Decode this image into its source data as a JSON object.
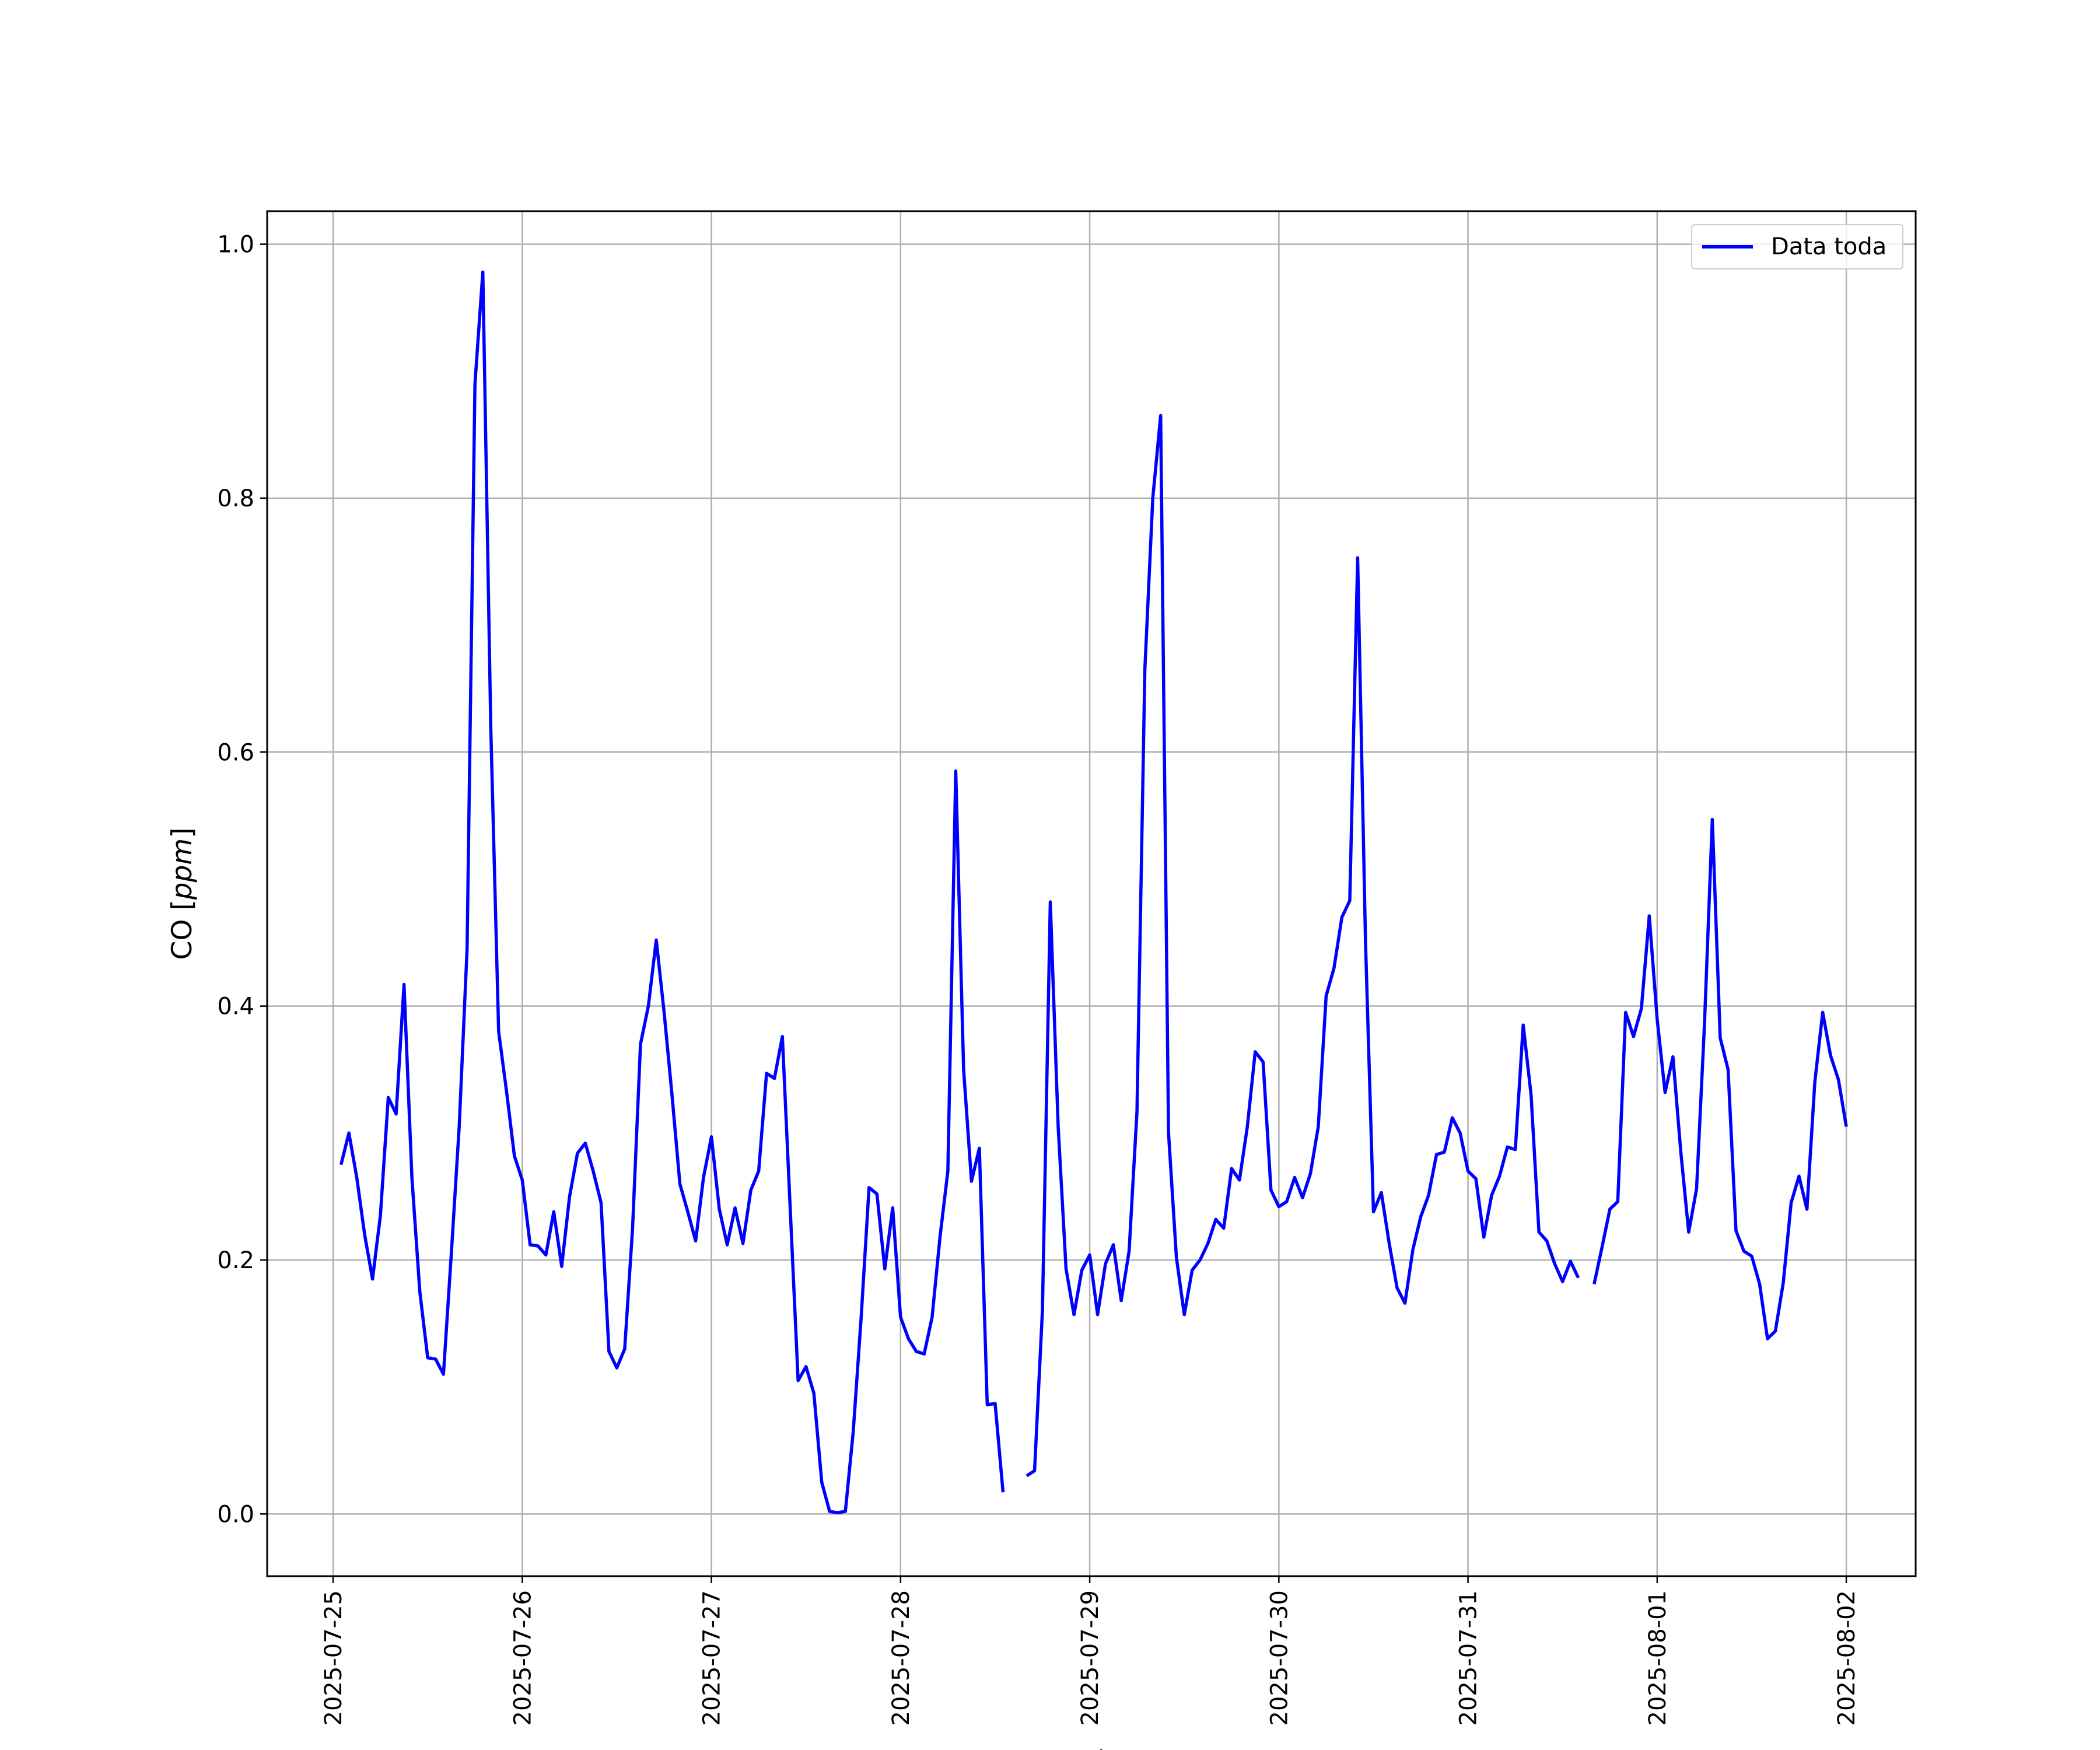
{
  "chart_data": {
    "type": "line",
    "title": "",
    "xlabel": "Fecha",
    "ylabel": "CO",
    "ylabel_unit": "ppm",
    "ylim": [
      -0.049,
      1.026
    ],
    "xlim": [
      "2025-07-24T15:38",
      "2025-08-02T08:48"
    ],
    "x_ticks": [
      "2025-07-25",
      "2025-07-26",
      "2025-07-27",
      "2025-07-28",
      "2025-07-29",
      "2025-07-30",
      "2025-07-31",
      "2025-08-01",
      "2025-08-02"
    ],
    "y_ticks": [
      "0.0",
      "0.2",
      "0.4",
      "0.6",
      "0.8",
      "1.0"
    ],
    "grid": true,
    "legend_position": "top-right",
    "series": [
      {
        "name": "Data toda",
        "color": "#0000ff",
        "points": [
          [
            "2025-07-25T01:00",
            0.275
          ],
          [
            "2025-07-25T02:00",
            0.3
          ],
          [
            "2025-07-25T03:00",
            0.265
          ],
          [
            "2025-07-25T04:00",
            0.22
          ],
          [
            "2025-07-25T05:00",
            0.185
          ],
          [
            "2025-07-25T06:00",
            0.235
          ],
          [
            "2025-07-25T07:00",
            0.328
          ],
          [
            "2025-07-25T08:00",
            0.315
          ],
          [
            "2025-07-25T09:00",
            0.417
          ],
          [
            "2025-07-25T10:00",
            0.265
          ],
          [
            "2025-07-25T11:00",
            0.175
          ],
          [
            "2025-07-25T12:00",
            0.123
          ],
          [
            "2025-07-25T13:00",
            0.122
          ],
          [
            "2025-07-25T14:00",
            0.11
          ],
          [
            "2025-07-25T15:00",
            0.205
          ],
          [
            "2025-07-25T16:00",
            0.305
          ],
          [
            "2025-07-25T17:00",
            0.445
          ],
          [
            "2025-07-25T18:00",
            0.89
          ],
          [
            "2025-07-25T19:00",
            0.978
          ],
          [
            "2025-07-25T20:00",
            0.62
          ],
          [
            "2025-07-25T21:00",
            0.38
          ],
          [
            "2025-07-25T22:00",
            0.333
          ],
          [
            "2025-07-25T23:00",
            0.282
          ],
          [
            "2025-07-26T00:00",
            0.263
          ],
          [
            "2025-07-26T01:00",
            0.212
          ],
          [
            "2025-07-26T02:00",
            0.211
          ],
          [
            "2025-07-26T03:00",
            0.204
          ],
          [
            "2025-07-26T04:00",
            0.238
          ],
          [
            "2025-07-26T05:00",
            0.195
          ],
          [
            "2025-07-26T06:00",
            0.25
          ],
          [
            "2025-07-26T07:00",
            0.284
          ],
          [
            "2025-07-26T08:00",
            0.292
          ],
          [
            "2025-07-26T09:00",
            0.27
          ],
          [
            "2025-07-26T10:00",
            0.245
          ],
          [
            "2025-07-26T11:00",
            0.128
          ],
          [
            "2025-07-26T12:00",
            0.115
          ],
          [
            "2025-07-26T13:00",
            0.13
          ],
          [
            "2025-07-26T14:00",
            0.225
          ],
          [
            "2025-07-26T15:00",
            0.37
          ],
          [
            "2025-07-26T16:00",
            0.4
          ],
          [
            "2025-07-26T17:00",
            0.452
          ],
          [
            "2025-07-26T18:00",
            0.395
          ],
          [
            "2025-07-26T19:00",
            0.33
          ],
          [
            "2025-07-26T20:00",
            0.26
          ],
          [
            "2025-07-26T21:00",
            0.238
          ],
          [
            "2025-07-26T22:00",
            0.215
          ],
          [
            "2025-07-26T23:00",
            0.265
          ],
          [
            "2025-07-27T00:00",
            0.297
          ],
          [
            "2025-07-27T01:00",
            0.24
          ],
          [
            "2025-07-27T02:00",
            0.212
          ],
          [
            "2025-07-27T03:00",
            0.241
          ],
          [
            "2025-07-27T04:00",
            0.213
          ],
          [
            "2025-07-27T05:00",
            0.255
          ],
          [
            "2025-07-27T06:00",
            0.27
          ],
          [
            "2025-07-27T07:00",
            0.347
          ],
          [
            "2025-07-27T08:00",
            0.343
          ],
          [
            "2025-07-27T09:00",
            0.376
          ],
          [
            "2025-07-27T10:00",
            0.24
          ],
          [
            "2025-07-27T11:00",
            0.105
          ],
          [
            "2025-07-27T12:00",
            0.116
          ],
          [
            "2025-07-27T13:00",
            0.095
          ],
          [
            "2025-07-27T14:00",
            0.025
          ],
          [
            "2025-07-27T15:00",
            0.002
          ],
          [
            "2025-07-27T16:00",
            0.001
          ],
          [
            "2025-07-27T17:00",
            0.002
          ],
          [
            "2025-07-27T18:00",
            0.065
          ],
          [
            "2025-07-27T19:00",
            0.155
          ],
          [
            "2025-07-27T20:00",
            0.257
          ],
          [
            "2025-07-27T21:00",
            0.252
          ],
          [
            "2025-07-27T22:00",
            0.193
          ],
          [
            "2025-07-27T23:00",
            0.241
          ],
          [
            "2025-07-28T00:00",
            0.155
          ],
          [
            "2025-07-28T01:00",
            0.138
          ],
          [
            "2025-07-28T02:00",
            0.128
          ],
          [
            "2025-07-28T03:00",
            0.126
          ],
          [
            "2025-07-28T04:00",
            0.155
          ],
          [
            "2025-07-28T05:00",
            0.218
          ],
          [
            "2025-07-28T06:00",
            0.27
          ],
          [
            "2025-07-28T07:00",
            0.585
          ],
          [
            "2025-07-28T08:00",
            0.35
          ],
          [
            "2025-07-28T09:00",
            0.262
          ],
          [
            "2025-07-28T10:00",
            0.288
          ],
          [
            "2025-07-28T11:00",
            0.086
          ],
          [
            "2025-07-28T12:00",
            0.087
          ],
          [
            "2025-07-28T13:00",
            0.017
          ],
          [
            "2025-07-28T14:00",
            null
          ],
          [
            "2025-07-28T15:00",
            null
          ],
          [
            "2025-07-28T16:00",
            0.03
          ],
          [
            "2025-07-28T17:00",
            0.034
          ],
          [
            "2025-07-28T18:00",
            0.16
          ],
          [
            "2025-07-28T19:00",
            0.482
          ],
          [
            "2025-07-28T20:00",
            0.305
          ],
          [
            "2025-07-28T21:00",
            0.193
          ],
          [
            "2025-07-28T22:00",
            0.157
          ],
          [
            "2025-07-28T23:00",
            0.192
          ],
          [
            "2025-07-29T00:00",
            0.204
          ],
          [
            "2025-07-29T01:00",
            0.157
          ],
          [
            "2025-07-29T02:00",
            0.197
          ],
          [
            "2025-07-29T03:00",
            0.212
          ],
          [
            "2025-07-29T04:00",
            0.168
          ],
          [
            "2025-07-29T05:00",
            0.207
          ],
          [
            "2025-07-29T06:00",
            0.317
          ],
          [
            "2025-07-29T07:00",
            0.665
          ],
          [
            "2025-07-29T08:00",
            0.8
          ],
          [
            "2025-07-29T09:00",
            0.865
          ],
          [
            "2025-07-29T10:00",
            0.3
          ],
          [
            "2025-07-29T11:00",
            0.202
          ],
          [
            "2025-07-29T12:00",
            0.157
          ],
          [
            "2025-07-29T13:00",
            0.192
          ],
          [
            "2025-07-29T14:00",
            0.2
          ],
          [
            "2025-07-29T15:00",
            0.213
          ],
          [
            "2025-07-29T16:00",
            0.232
          ],
          [
            "2025-07-29T17:00",
            0.225
          ],
          [
            "2025-07-29T18:00",
            0.272
          ],
          [
            "2025-07-29T19:00",
            0.263
          ],
          [
            "2025-07-29T20:00",
            0.305
          ],
          [
            "2025-07-29T21:00",
            0.364
          ],
          [
            "2025-07-29T22:00",
            0.356
          ],
          [
            "2025-07-29T23:00",
            0.255
          ],
          [
            "2025-07-30T00:00",
            0.242
          ],
          [
            "2025-07-30T01:00",
            0.246
          ],
          [
            "2025-07-30T02:00",
            0.265
          ],
          [
            "2025-07-30T03:00",
            0.249
          ],
          [
            "2025-07-30T04:00",
            0.268
          ],
          [
            "2025-07-30T05:00",
            0.305
          ],
          [
            "2025-07-30T06:00",
            0.408
          ],
          [
            "2025-07-30T07:00",
            0.43
          ],
          [
            "2025-07-30T08:00",
            0.47
          ],
          [
            "2025-07-30T09:00",
            0.483
          ],
          [
            "2025-07-30T10:00",
            0.753
          ],
          [
            "2025-07-30T11:00",
            0.45
          ],
          [
            "2025-07-30T12:00",
            0.238
          ],
          [
            "2025-07-30T13:00",
            0.253
          ],
          [
            "2025-07-30T14:00",
            0.213
          ],
          [
            "2025-07-30T15:00",
            0.178
          ],
          [
            "2025-07-30T16:00",
            0.166
          ],
          [
            "2025-07-30T17:00",
            0.208
          ],
          [
            "2025-07-30T18:00",
            0.234
          ],
          [
            "2025-07-30T19:00",
            0.251
          ],
          [
            "2025-07-30T20:00",
            0.283
          ],
          [
            "2025-07-30T21:00",
            0.285
          ],
          [
            "2025-07-30T22:00",
            0.312
          ],
          [
            "2025-07-30T23:00",
            0.3
          ],
          [
            "2025-07-31T00:00",
            0.27
          ],
          [
            "2025-07-31T01:00",
            0.264
          ],
          [
            "2025-07-31T02:00",
            0.218
          ],
          [
            "2025-07-31T03:00",
            0.251
          ],
          [
            "2025-07-31T04:00",
            0.266
          ],
          [
            "2025-07-31T05:00",
            0.289
          ],
          [
            "2025-07-31T06:00",
            0.287
          ],
          [
            "2025-07-31T07:00",
            0.385
          ],
          [
            "2025-07-31T08:00",
            0.33
          ],
          [
            "2025-07-31T09:00",
            0.222
          ],
          [
            "2025-07-31T10:00",
            0.215
          ],
          [
            "2025-07-31T11:00",
            0.197
          ],
          [
            "2025-07-31T12:00",
            0.183
          ],
          [
            "2025-07-31T13:00",
            0.199
          ],
          [
            "2025-07-31T14:00",
            0.186
          ],
          [
            "2025-07-31T15:00",
            null
          ],
          [
            "2025-07-31T16:00",
            0.181
          ],
          [
            "2025-07-31T17:00",
            0.21
          ],
          [
            "2025-07-31T18:00",
            0.24
          ],
          [
            "2025-07-31T19:00",
            0.246
          ],
          [
            "2025-07-31T20:00",
            0.395
          ],
          [
            "2025-07-31T21:00",
            0.376
          ],
          [
            "2025-07-31T22:00",
            0.398
          ],
          [
            "2025-07-31T23:00",
            0.471
          ],
          [
            "2025-08-01T00:00",
            0.39
          ],
          [
            "2025-08-01T01:00",
            0.332
          ],
          [
            "2025-08-01T02:00",
            0.36
          ],
          [
            "2025-08-01T03:00",
            0.285
          ],
          [
            "2025-08-01T04:00",
            0.222
          ],
          [
            "2025-08-01T05:00",
            0.256
          ],
          [
            "2025-08-01T06:00",
            0.385
          ],
          [
            "2025-08-01T07:00",
            0.547
          ],
          [
            "2025-08-01T08:00",
            0.375
          ],
          [
            "2025-08-01T09:00",
            0.35
          ],
          [
            "2025-08-01T10:00",
            0.223
          ],
          [
            "2025-08-01T11:00",
            0.207
          ],
          [
            "2025-08-01T12:00",
            0.203
          ],
          [
            "2025-08-01T13:00",
            0.181
          ],
          [
            "2025-08-01T14:00",
            0.138
          ],
          [
            "2025-08-01T15:00",
            0.144
          ],
          [
            "2025-08-01T16:00",
            0.182
          ],
          [
            "2025-08-01T17:00",
            0.245
          ],
          [
            "2025-08-01T18:00",
            0.266
          ],
          [
            "2025-08-01T19:00",
            0.24
          ],
          [
            "2025-08-01T20:00",
            0.34
          ],
          [
            "2025-08-01T21:00",
            0.395
          ],
          [
            "2025-08-01T22:00",
            0.361
          ],
          [
            "2025-08-01T23:00",
            0.342
          ],
          [
            "2025-08-02T00:00",
            0.305
          ]
        ]
      }
    ]
  }
}
